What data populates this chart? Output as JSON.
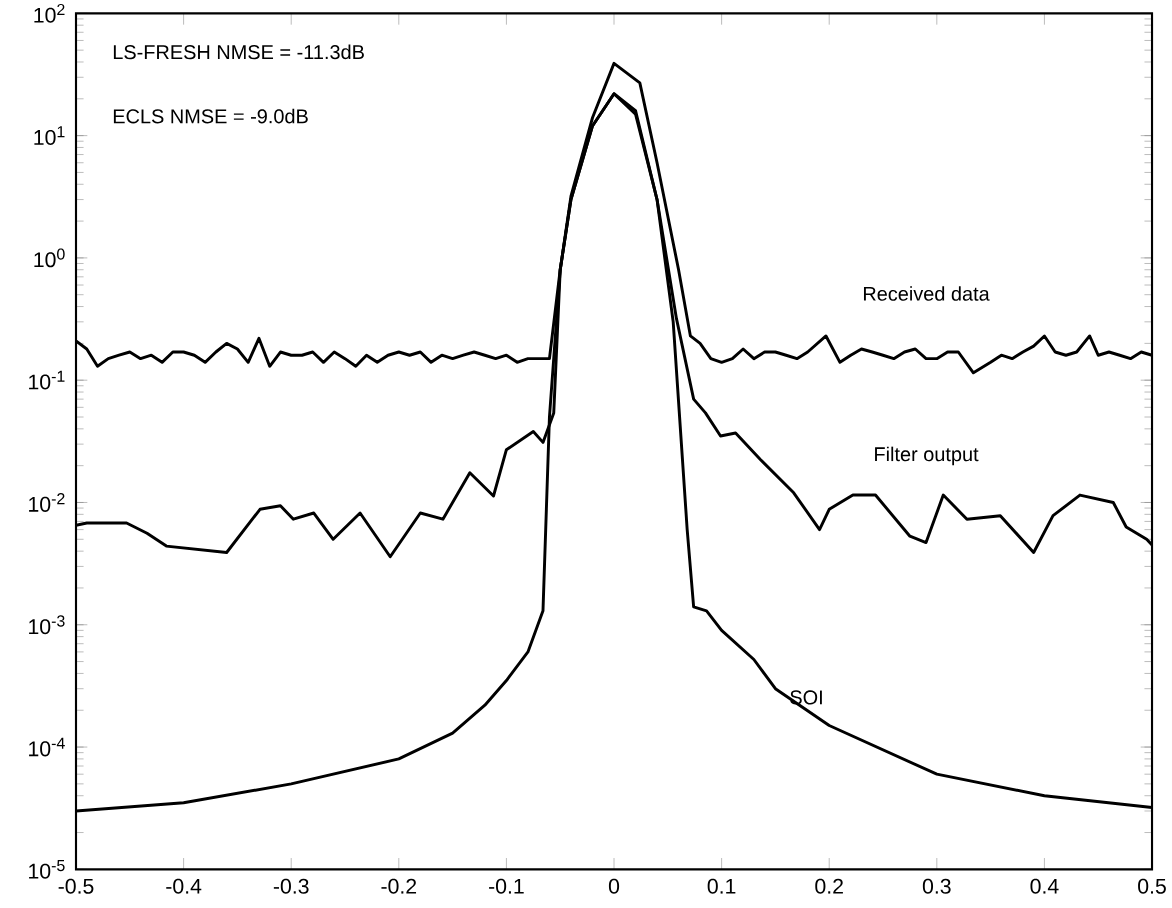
{
  "chart_data": {
    "type": "line",
    "log": "y",
    "xlim": [
      -0.5,
      0.5
    ],
    "ylim": [
      1e-05,
      100
    ],
    "xticks": [
      -0.5,
      -0.4,
      -0.3,
      -0.2,
      -0.1,
      0,
      0.1,
      0.2,
      0.3,
      0.4,
      0.5
    ],
    "yticks": [
      {
        "value": 1e-05,
        "label": "10$^{-5}$"
      },
      {
        "value": 0.0001,
        "label": "10$^{-4}$"
      },
      {
        "value": 0.001,
        "label": "10$^{-3}$"
      },
      {
        "value": 0.01,
        "label": "10$^{-2}$"
      },
      {
        "value": 0.1,
        "label": "10$^{-1}$"
      },
      {
        "value": 1,
        "label": "10$^{0}$"
      },
      {
        "value": 10,
        "label": "10$^{1}$"
      },
      {
        "value": 100,
        "label": "10$^{2}$"
      }
    ],
    "grid": false,
    "legend": false,
    "marker": "none",
    "line_style": "solid",
    "annotations": [
      "LS-FRESH NMSE = -11.3dB",
      "ECLS NMSE = -9.0dB"
    ],
    "series": [
      {
        "name": "Received data",
        "color": "#000000",
        "x": [
          -0.5,
          -0.49,
          -0.48,
          -0.47,
          -0.46,
          -0.45,
          -0.44,
          -0.43,
          -0.42,
          -0.41,
          -0.4,
          -0.39,
          -0.38,
          -0.37,
          -0.36,
          -0.35,
          -0.34,
          -0.33,
          -0.32,
          -0.31,
          -0.3,
          -0.29,
          -0.28,
          -0.27,
          -0.26,
          -0.25,
          -0.24,
          -0.23,
          -0.22,
          -0.21,
          -0.2,
          -0.19,
          -0.18,
          -0.17,
          -0.16,
          -0.15,
          -0.14,
          -0.13,
          -0.12,
          -0.11,
          -0.1,
          -0.09,
          -0.08,
          -0.07,
          -0.06,
          -0.05,
          -0.04,
          -0.02,
          0,
          0.024,
          0.04,
          0.06,
          0.071,
          0.08,
          0.09,
          0.1,
          0.11,
          0.12,
          0.13,
          0.14,
          0.15,
          0.16,
          0.17,
          0.18,
          0.197,
          0.21,
          0.22,
          0.23,
          0.24,
          0.25,
          0.26,
          0.27,
          0.28,
          0.29,
          0.3,
          0.31,
          0.32,
          0.334,
          0.35,
          0.36,
          0.37,
          0.38,
          0.39,
          0.4,
          0.41,
          0.42,
          0.43,
          0.442,
          0.45,
          0.46,
          0.47,
          0.48,
          0.49,
          0.5
        ],
        "values": [
          0.21,
          0.18,
          0.13,
          0.15,
          0.16,
          0.17,
          0.15,
          0.16,
          0.14,
          0.17,
          0.17,
          0.16,
          0.14,
          0.17,
          0.2,
          0.18,
          0.14,
          0.22,
          0.13,
          0.17,
          0.16,
          0.16,
          0.17,
          0.14,
          0.17,
          0.15,
          0.13,
          0.16,
          0.14,
          0.16,
          0.17,
          0.16,
          0.17,
          0.14,
          0.16,
          0.15,
          0.16,
          0.17,
          0.16,
          0.15,
          0.16,
          0.14,
          0.15,
          0.15,
          0.15,
          0.8,
          3.2,
          14,
          39,
          27,
          6,
          0.8,
          0.23,
          0.2,
          0.15,
          0.14,
          0.15,
          0.18,
          0.15,
          0.17,
          0.17,
          0.16,
          0.15,
          0.17,
          0.23,
          0.14,
          0.16,
          0.18,
          0.17,
          0.16,
          0.15,
          0.17,
          0.18,
          0.15,
          0.15,
          0.17,
          0.17,
          0.115,
          0.14,
          0.16,
          0.15,
          0.17,
          0.19,
          0.23,
          0.17,
          0.16,
          0.17,
          0.23,
          0.16,
          0.17,
          0.16,
          0.15,
          0.17,
          0.16
        ]
      },
      {
        "name": "Filter output",
        "color": "#000000",
        "x": [
          -0.5,
          -0.49,
          -0.453,
          -0.434,
          -0.416,
          -0.36,
          -0.329,
          -0.31,
          -0.298,
          -0.279,
          -0.261,
          -0.236,
          -0.208,
          -0.18,
          -0.159,
          -0.134,
          -0.112,
          -0.1,
          -0.075,
          -0.066,
          -0.056,
          -0.05,
          -0.04,
          -0.02,
          0,
          0.02,
          0.04,
          0.058,
          0.074,
          0.085,
          0.099,
          0.113,
          0.136,
          0.167,
          0.191,
          0.2,
          0.222,
          0.243,
          0.275,
          0.29,
          0.306,
          0.328,
          0.359,
          0.39,
          0.408,
          0.433,
          0.464,
          0.476,
          0.495,
          0.5
        ],
        "values": [
          0.0065,
          0.0068,
          0.0068,
          0.0056,
          0.0044,
          0.0039,
          0.0088,
          0.0094,
          0.0073,
          0.0082,
          0.005,
          0.0082,
          0.0036,
          0.0082,
          0.0073,
          0.0175,
          0.0113,
          0.027,
          0.038,
          0.031,
          0.054,
          0.8,
          3,
          12,
          22,
          16,
          3,
          0.32,
          0.07,
          0.054,
          0.035,
          0.037,
          0.0225,
          0.012,
          0.006,
          0.0088,
          0.0115,
          0.0115,
          0.0053,
          0.0047,
          0.0115,
          0.0073,
          0.0078,
          0.0039,
          0.0078,
          0.0115,
          0.01,
          0.0063,
          0.005,
          0.0045
        ]
      },
      {
        "name": "SOI",
        "color": "#000000",
        "x": [
          -0.5,
          -0.4,
          -0.3,
          -0.2,
          -0.15,
          -0.12,
          -0.1,
          -0.08,
          -0.066,
          -0.06,
          -0.05,
          -0.04,
          -0.02,
          0,
          0.02,
          0.04,
          0.055,
          0.068,
          0.074,
          0.086,
          0.1,
          0.13,
          0.15,
          0.2,
          0.3,
          0.4,
          0.5
        ],
        "values": [
          3e-05,
          3.5e-05,
          5e-05,
          8e-05,
          0.00013,
          0.00022,
          0.00035,
          0.0006,
          0.0013,
          0.05,
          0.8,
          3,
          12,
          22,
          15,
          3,
          0.3,
          0.006,
          0.0014,
          0.0013,
          0.0009,
          0.00052,
          0.0003,
          0.00015,
          6e-05,
          4e-05,
          3.2e-05
        ]
      }
    ]
  }
}
